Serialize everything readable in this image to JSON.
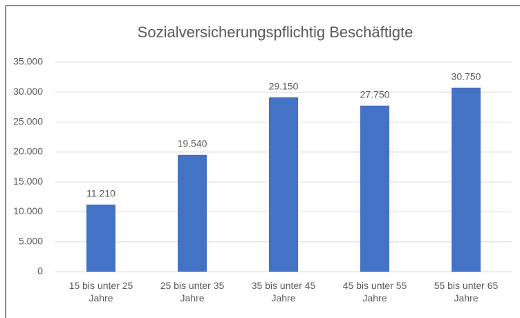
{
  "chart_data": {
    "type": "bar",
    "title": "Sozialversicherungspflichtig Beschäftigte",
    "categories": [
      "15 bis unter 25 Jahre",
      "25 bis unter 35 Jahre",
      "35 bis unter 45 Jahre",
      "45 bis unter 55 Jahre",
      "55 bis unter 65 Jahre"
    ],
    "values": [
      11210,
      19540,
      29150,
      27750,
      30750
    ],
    "value_labels": [
      "11.210",
      "19.540",
      "29.150",
      "27.750",
      "30.750"
    ],
    "color": "#4472c4",
    "ylim": [
      0,
      35000
    ],
    "yticks": [
      0,
      {
        "value": 5000,
        "label": "5.000"
      },
      {
        "value": 10000,
        "label": "10.000"
      },
      {
        "value": 15000,
        "label": "15.000"
      },
      {
        "value": 20000,
        "label": "20.000"
      },
      {
        "value": 25000,
        "label": "25.000"
      },
      {
        "value": 30000,
        "label": "30.000"
      },
      {
        "value": 35000,
        "label": "35.000"
      }
    ],
    "grid": true
  }
}
